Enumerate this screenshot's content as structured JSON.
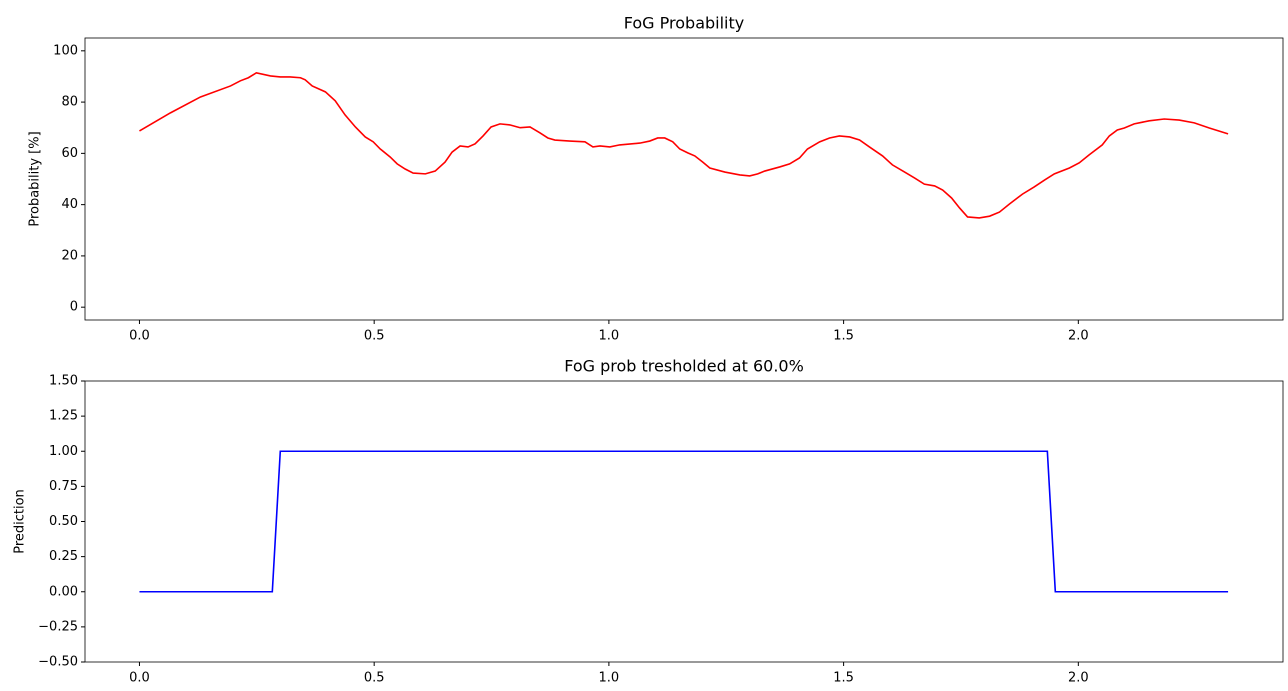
{
  "chart_data": [
    {
      "type": "line",
      "title": "FoG Probability",
      "ylabel": "Probability [%]",
      "xlim": [
        -0.116,
        2.436
      ],
      "ylim": [
        -5,
        105
      ],
      "xticks": [
        {
          "value": 0,
          "label": "0.0"
        },
        0.5,
        {
          "value": 1,
          "label": "1.0"
        },
        1.5,
        {
          "value": 2,
          "label": "2.0"
        }
      ],
      "yticks": [
        0,
        20,
        40,
        60,
        80,
        100
      ],
      "series": [
        {
          "color": "#ff0000",
          "x": [
            0,
            0.066,
            0.13,
            0.194,
            0.215,
            0.232,
            0.249,
            0.279,
            0.3,
            0.321,
            0.343,
            0.353,
            0.368,
            0.396,
            0.417,
            0.438,
            0.46,
            0.481,
            0.498,
            0.513,
            0.534,
            0.549,
            0.566,
            0.583,
            0.609,
            0.63,
            0.651,
            0.666,
            0.683,
            0.7,
            0.715,
            0.732,
            0.749,
            0.768,
            0.789,
            0.811,
            0.832,
            0.853,
            0.87,
            0.885,
            0.917,
            0.949,
            0.966,
            0.981,
            1.002,
            1.023,
            1.066,
            1.087,
            1.104,
            1.119,
            1.136,
            1.151,
            1.168,
            1.183,
            1.2,
            1.215,
            1.247,
            1.279,
            1.3,
            1.317,
            1.332,
            1.364,
            1.385,
            1.406,
            1.423,
            1.449,
            1.47,
            1.491,
            1.513,
            1.534,
            1.555,
            1.583,
            1.604,
            1.63,
            1.651,
            1.672,
            1.694,
            1.711,
            1.73,
            1.747,
            1.764,
            1.789,
            1.811,
            1.832,
            1.853,
            1.881,
            1.906,
            1.928,
            1.949,
            1.981,
            2.002,
            2.023,
            2.051,
            2.066,
            2.083,
            2.098,
            2.119,
            2.151,
            2.183,
            2.215,
            2.247,
            2.279,
            2.319
          ],
          "values": [
            68.75,
            75.8,
            82,
            86.3,
            88.3,
            89.5,
            91.4,
            90.2,
            89.8,
            89.8,
            89.5,
            88.7,
            86.3,
            84,
            80.5,
            75,
            70.3,
            66.4,
            64.5,
            61.7,
            58.6,
            55.9,
            53.9,
            52.3,
            52,
            53.1,
            56.6,
            60.5,
            62.9,
            62.5,
            63.7,
            66.8,
            70.3,
            71.5,
            71.1,
            70,
            70.3,
            68,
            66,
            65.2,
            64.8,
            64.5,
            62.5,
            62.9,
            62.5,
            63.3,
            64,
            64.8,
            66,
            66,
            64.5,
            61.7,
            60.2,
            59,
            56.6,
            54.3,
            52.7,
            51.6,
            51.2,
            52,
            53.1,
            54.7,
            55.9,
            58.2,
            61.7,
            64.5,
            66,
            66.8,
            66.4,
            65.2,
            62.5,
            59,
            55.5,
            52.7,
            50.4,
            48,
            47.3,
            45.7,
            42.6,
            38.7,
            35.2,
            34.8,
            35.5,
            37.1,
            40.2,
            44.1,
            46.9,
            49.6,
            52,
            54.3,
            56.3,
            59.4,
            63.3,
            66.8,
            69.1,
            69.9,
            71.5,
            72.7,
            73.4,
            73,
            71.9,
            69.9,
            67.6
          ]
        }
      ]
    },
    {
      "type": "line",
      "title": "FoG prob tresholded at 60.0%",
      "ylabel": "Prediction",
      "xlim": [
        -0.116,
        2.436
      ],
      "ylim": [
        -0.5,
        1.5
      ],
      "xticks": [
        {
          "value": 0,
          "label": "0.0"
        },
        0.5,
        {
          "value": 1,
          "label": "1.0"
        },
        1.5,
        {
          "value": 2,
          "label": "2.0"
        }
      ],
      "yticks": [
        {
          "value": -0.5,
          "label": "−0.50"
        },
        {
          "value": -0.25,
          "label": "−0.25"
        },
        {
          "value": 0,
          "label": "0.00"
        },
        {
          "value": 0.25,
          "label": "0.25"
        },
        {
          "value": 0.5,
          "label": "0.50"
        },
        {
          "value": 0.75,
          "label": "0.75"
        },
        {
          "value": 1,
          "label": "1.00"
        },
        {
          "value": 1.25,
          "label": "1.25"
        },
        {
          "value": 1.5,
          "label": "1.50"
        }
      ],
      "series": [
        {
          "color": "#0000ff",
          "x": [
            0,
            0.283,
            0.3,
            1.934,
            1.951,
            2.319
          ],
          "values": [
            0,
            0,
            1,
            1,
            0,
            0
          ]
        }
      ]
    }
  ]
}
